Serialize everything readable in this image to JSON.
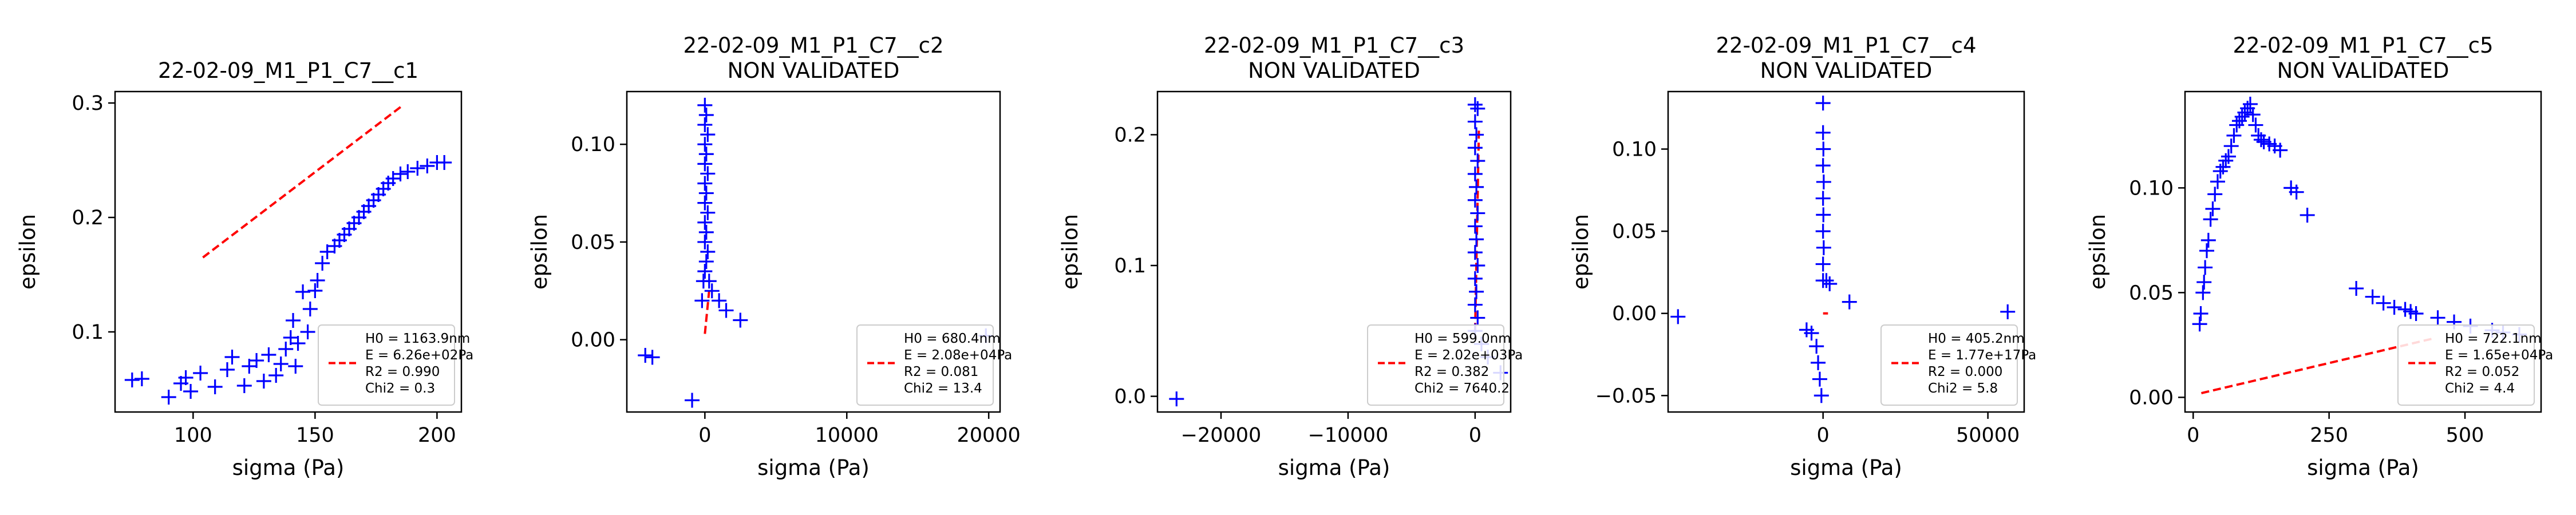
{
  "colors": {
    "points": "#0000ff",
    "fit": "#ff0000",
    "frame": "#000000",
    "legend_border": "#cccccc"
  },
  "chart_data": [
    {
      "type": "scatter",
      "title": "22-02-09_M1_P1_C7__c1",
      "subtitle": "",
      "xlabel": "sigma (Pa)",
      "ylabel": "epsilon",
      "xlim": [
        68,
        210
      ],
      "ylim": [
        0.03,
        0.31
      ],
      "xticks": [
        {
          "v": 100,
          "label": "100"
        },
        {
          "v": 150,
          "label": "150"
        },
        {
          "v": 200,
          "label": "200"
        }
      ],
      "yticks": [
        {
          "v": 0.1,
          "label": "0.1"
        },
        {
          "v": 0.2,
          "label": "0.2"
        },
        {
          "v": 0.3,
          "label": "0.3"
        }
      ],
      "legend_position": "lower-right",
      "legend": [
        "H0 = 1163.9nm",
        "E = 6.26e+02Pa",
        "R2 = 0.990",
        "Chi2 = 0.3"
      ],
      "fit": [
        [
          104,
          0.165
        ],
        [
          186,
          0.298
        ]
      ],
      "points": [
        [
          75,
          0.058
        ],
        [
          79,
          0.059
        ],
        [
          90,
          0.043
        ],
        [
          95,
          0.055
        ],
        [
          97,
          0.06
        ],
        [
          99,
          0.048
        ],
        [
          103,
          0.064
        ],
        [
          109,
          0.052
        ],
        [
          114,
          0.067
        ],
        [
          116,
          0.078
        ],
        [
          121,
          0.053
        ],
        [
          123,
          0.07
        ],
        [
          126,
          0.075
        ],
        [
          129,
          0.057
        ],
        [
          131,
          0.08
        ],
        [
          134,
          0.062
        ],
        [
          136,
          0.072
        ],
        [
          138,
          0.085
        ],
        [
          140,
          0.095
        ],
        [
          141,
          0.11
        ],
        [
          142,
          0.07
        ],
        [
          143,
          0.09
        ],
        [
          145,
          0.135
        ],
        [
          147,
          0.1
        ],
        [
          148,
          0.12
        ],
        [
          150,
          0.136
        ],
        [
          151,
          0.145
        ],
        [
          153,
          0.16
        ],
        [
          155,
          0.17
        ],
        [
          158,
          0.175
        ],
        [
          160,
          0.18
        ],
        [
          162,
          0.185
        ],
        [
          164,
          0.19
        ],
        [
          166,
          0.195
        ],
        [
          168,
          0.2
        ],
        [
          170,
          0.205
        ],
        [
          172,
          0.21
        ],
        [
          174,
          0.215
        ],
        [
          176,
          0.22
        ],
        [
          178,
          0.225
        ],
        [
          180,
          0.23
        ],
        [
          182,
          0.234
        ],
        [
          185,
          0.238
        ],
        [
          188,
          0.24
        ],
        [
          192,
          0.243
        ],
        [
          196,
          0.245
        ],
        [
          200,
          0.248
        ],
        [
          203,
          0.248
        ]
      ]
    },
    {
      "type": "scatter",
      "title": "22-02-09_M1_P1_C7__c2",
      "subtitle": "NON VALIDATED",
      "xlabel": "sigma (Pa)",
      "ylabel": "epsilon",
      "xlim": [
        -5500,
        20800
      ],
      "ylim": [
        -0.037,
        0.127
      ],
      "xticks": [
        {
          "v": 0,
          "label": "0"
        },
        {
          "v": 10000,
          "label": "10000"
        },
        {
          "v": 20000,
          "label": "20000"
        }
      ],
      "yticks": [
        {
          "v": 0.0,
          "label": "0.00"
        },
        {
          "v": 0.05,
          "label": "0.05"
        },
        {
          "v": 0.1,
          "label": "0.10"
        }
      ],
      "legend_position": "lower-right",
      "legend": [
        "H0 = 680.4nm",
        "E = 2.08e+04Pa",
        "R2 = 0.081",
        "Chi2 = 13.4"
      ],
      "fit": [
        [
          0,
          0.003
        ],
        [
          300,
          0.025
        ]
      ],
      "points": [
        [
          -4200,
          -0.008
        ],
        [
          -3700,
          -0.009
        ],
        [
          -900,
          -0.031
        ],
        [
          -200,
          0.02
        ],
        [
          -100,
          0.03
        ],
        [
          0,
          0.035
        ],
        [
          100,
          0.04
        ],
        [
          200,
          0.045
        ],
        [
          0,
          0.05
        ],
        [
          100,
          0.055
        ],
        [
          0,
          0.06
        ],
        [
          200,
          0.065
        ],
        [
          0,
          0.07
        ],
        [
          100,
          0.075
        ],
        [
          0,
          0.08
        ],
        [
          200,
          0.085
        ],
        [
          0,
          0.09
        ],
        [
          100,
          0.095
        ],
        [
          0,
          0.1
        ],
        [
          200,
          0.105
        ],
        [
          0,
          0.11
        ],
        [
          100,
          0.115
        ],
        [
          0,
          0.12
        ],
        [
          300,
          0.03
        ],
        [
          500,
          0.025
        ],
        [
          1000,
          0.02
        ],
        [
          1500,
          0.015
        ],
        [
          2500,
          0.01
        ],
        [
          19800,
          0.002
        ]
      ]
    },
    {
      "type": "scatter",
      "title": "22-02-09_M1_P1_C7__c3",
      "subtitle": "NON VALIDATED",
      "xlabel": "sigma (Pa)",
      "ylabel": "epsilon",
      "xlim": [
        -25000,
        2800
      ],
      "ylim": [
        -0.012,
        0.233
      ],
      "xticks": [
        {
          "v": -20000,
          "label": "−20000"
        },
        {
          "v": -10000,
          "label": "−10000"
        },
        {
          "v": 0,
          "label": "0"
        }
      ],
      "yticks": [
        {
          "v": 0.0,
          "label": "0.0"
        },
        {
          "v": 0.1,
          "label": "0.1"
        },
        {
          "v": 0.2,
          "label": "0.2"
        }
      ],
      "legend_position": "lower-right",
      "legend": [
        "H0 = 599.0nm",
        "E = 2.02e+03Pa",
        "R2 = 0.382",
        "Chi2 = 7640.2"
      ],
      "fit": [
        [
          0,
          0.05
        ],
        [
          300,
          0.205
        ]
      ],
      "points": [
        [
          -23500,
          -0.002
        ],
        [
          0,
          0.05
        ],
        [
          200,
          0.06
        ],
        [
          0,
          0.07
        ],
        [
          100,
          0.08
        ],
        [
          0,
          0.09
        ],
        [
          200,
          0.1
        ],
        [
          0,
          0.11
        ],
        [
          100,
          0.12
        ],
        [
          0,
          0.13
        ],
        [
          200,
          0.14
        ],
        [
          0,
          0.15
        ],
        [
          100,
          0.16
        ],
        [
          0,
          0.17
        ],
        [
          200,
          0.18
        ],
        [
          0,
          0.19
        ],
        [
          100,
          0.2
        ],
        [
          0,
          0.21
        ],
        [
          200,
          0.22
        ],
        [
          0,
          0.223
        ],
        [
          500,
          0.04
        ],
        [
          1000,
          0.03
        ],
        [
          2000,
          0.018
        ]
      ]
    },
    {
      "type": "scatter",
      "title": "22-02-09_M1_P1_C7__c4",
      "subtitle": "NON VALIDATED",
      "xlabel": "sigma (Pa)",
      "ylabel": "epsilon",
      "xlim": [
        -47000,
        61000
      ],
      "ylim": [
        -0.06,
        0.135
      ],
      "xticks": [
        {
          "v": 0,
          "label": "0"
        },
        {
          "v": 50000,
          "label": "50000"
        }
      ],
      "yticks": [
        {
          "v": -0.05,
          "label": "−0.05"
        },
        {
          "v": 0.0,
          "label": "0.00"
        },
        {
          "v": 0.05,
          "label": "0.05"
        },
        {
          "v": 0.1,
          "label": "0.10"
        }
      ],
      "legend_position": "lower-right",
      "legend": [
        "H0 = 405.2nm",
        "E = 1.77e+17Pa",
        "R2 = 0.000",
        "Chi2 = 5.8"
      ],
      "fit": [
        [
          0,
          0.0
        ],
        [
          1500,
          0.0
        ]
      ],
      "points": [
        [
          -44000,
          -0.002
        ],
        [
          -5000,
          -0.01
        ],
        [
          -3500,
          -0.012
        ],
        [
          -2000,
          -0.02
        ],
        [
          -1500,
          -0.03
        ],
        [
          -1000,
          -0.04
        ],
        [
          -500,
          -0.05
        ],
        [
          0,
          0.02
        ],
        [
          0,
          0.03
        ],
        [
          200,
          0.04
        ],
        [
          0,
          0.05
        ],
        [
          100,
          0.06
        ],
        [
          0,
          0.07
        ],
        [
          200,
          0.08
        ],
        [
          0,
          0.09
        ],
        [
          100,
          0.1
        ],
        [
          0,
          0.11
        ],
        [
          0,
          0.128
        ],
        [
          1000,
          0.02
        ],
        [
          2000,
          0.018
        ],
        [
          8000,
          0.007
        ],
        [
          56000,
          0.001
        ]
      ]
    },
    {
      "type": "scatter",
      "title": "22-02-09_M1_P1_C7__c5",
      "subtitle": "NON VALIDATED",
      "xlabel": "sigma (Pa)",
      "ylabel": "epsilon",
      "xlim": [
        -15,
        640
      ],
      "ylim": [
        -0.007,
        0.146
      ],
      "xticks": [
        {
          "v": 0,
          "label": "0"
        },
        {
          "v": 250,
          "label": "250"
        },
        {
          "v": 500,
          "label": "500"
        }
      ],
      "yticks": [
        {
          "v": 0.0,
          "label": "0.00"
        },
        {
          "v": 0.05,
          "label": "0.05"
        },
        {
          "v": 0.1,
          "label": "0.10"
        }
      ],
      "legend_position": "lower-right",
      "legend": [
        "H0 = 722.1nm",
        "E = 1.65e+04Pa",
        "R2 = 0.052",
        "Chi2 = 4.4"
      ],
      "fit": [
        [
          15,
          0.002
        ],
        [
          440,
          0.028
        ]
      ],
      "points": [
        [
          12,
          0.035
        ],
        [
          14,
          0.04
        ],
        [
          18,
          0.05
        ],
        [
          20,
          0.055
        ],
        [
          22,
          0.062
        ],
        [
          25,
          0.07
        ],
        [
          28,
          0.075
        ],
        [
          32,
          0.085
        ],
        [
          36,
          0.09
        ],
        [
          40,
          0.097
        ],
        [
          45,
          0.103
        ],
        [
          50,
          0.108
        ],
        [
          55,
          0.11
        ],
        [
          60,
          0.113
        ],
        [
          65,
          0.115
        ],
        [
          70,
          0.12
        ],
        [
          75,
          0.125
        ],
        [
          80,
          0.13
        ],
        [
          85,
          0.132
        ],
        [
          90,
          0.134
        ],
        [
          95,
          0.136
        ],
        [
          100,
          0.138
        ],
        [
          105,
          0.14
        ],
        [
          110,
          0.135
        ],
        [
          115,
          0.13
        ],
        [
          120,
          0.125
        ],
        [
          125,
          0.123
        ],
        [
          130,
          0.122
        ],
        [
          140,
          0.121
        ],
        [
          150,
          0.12
        ],
        [
          160,
          0.118
        ],
        [
          180,
          0.1
        ],
        [
          190,
          0.098
        ],
        [
          210,
          0.087
        ],
        [
          300,
          0.052
        ],
        [
          330,
          0.048
        ],
        [
          350,
          0.045
        ],
        [
          370,
          0.043
        ],
        [
          390,
          0.042
        ],
        [
          400,
          0.041
        ],
        [
          410,
          0.04
        ],
        [
          450,
          0.038
        ],
        [
          480,
          0.036
        ],
        [
          510,
          0.034
        ],
        [
          550,
          0.032
        ],
        [
          570,
          0.031
        ],
        [
          600,
          0.03
        ]
      ]
    }
  ]
}
